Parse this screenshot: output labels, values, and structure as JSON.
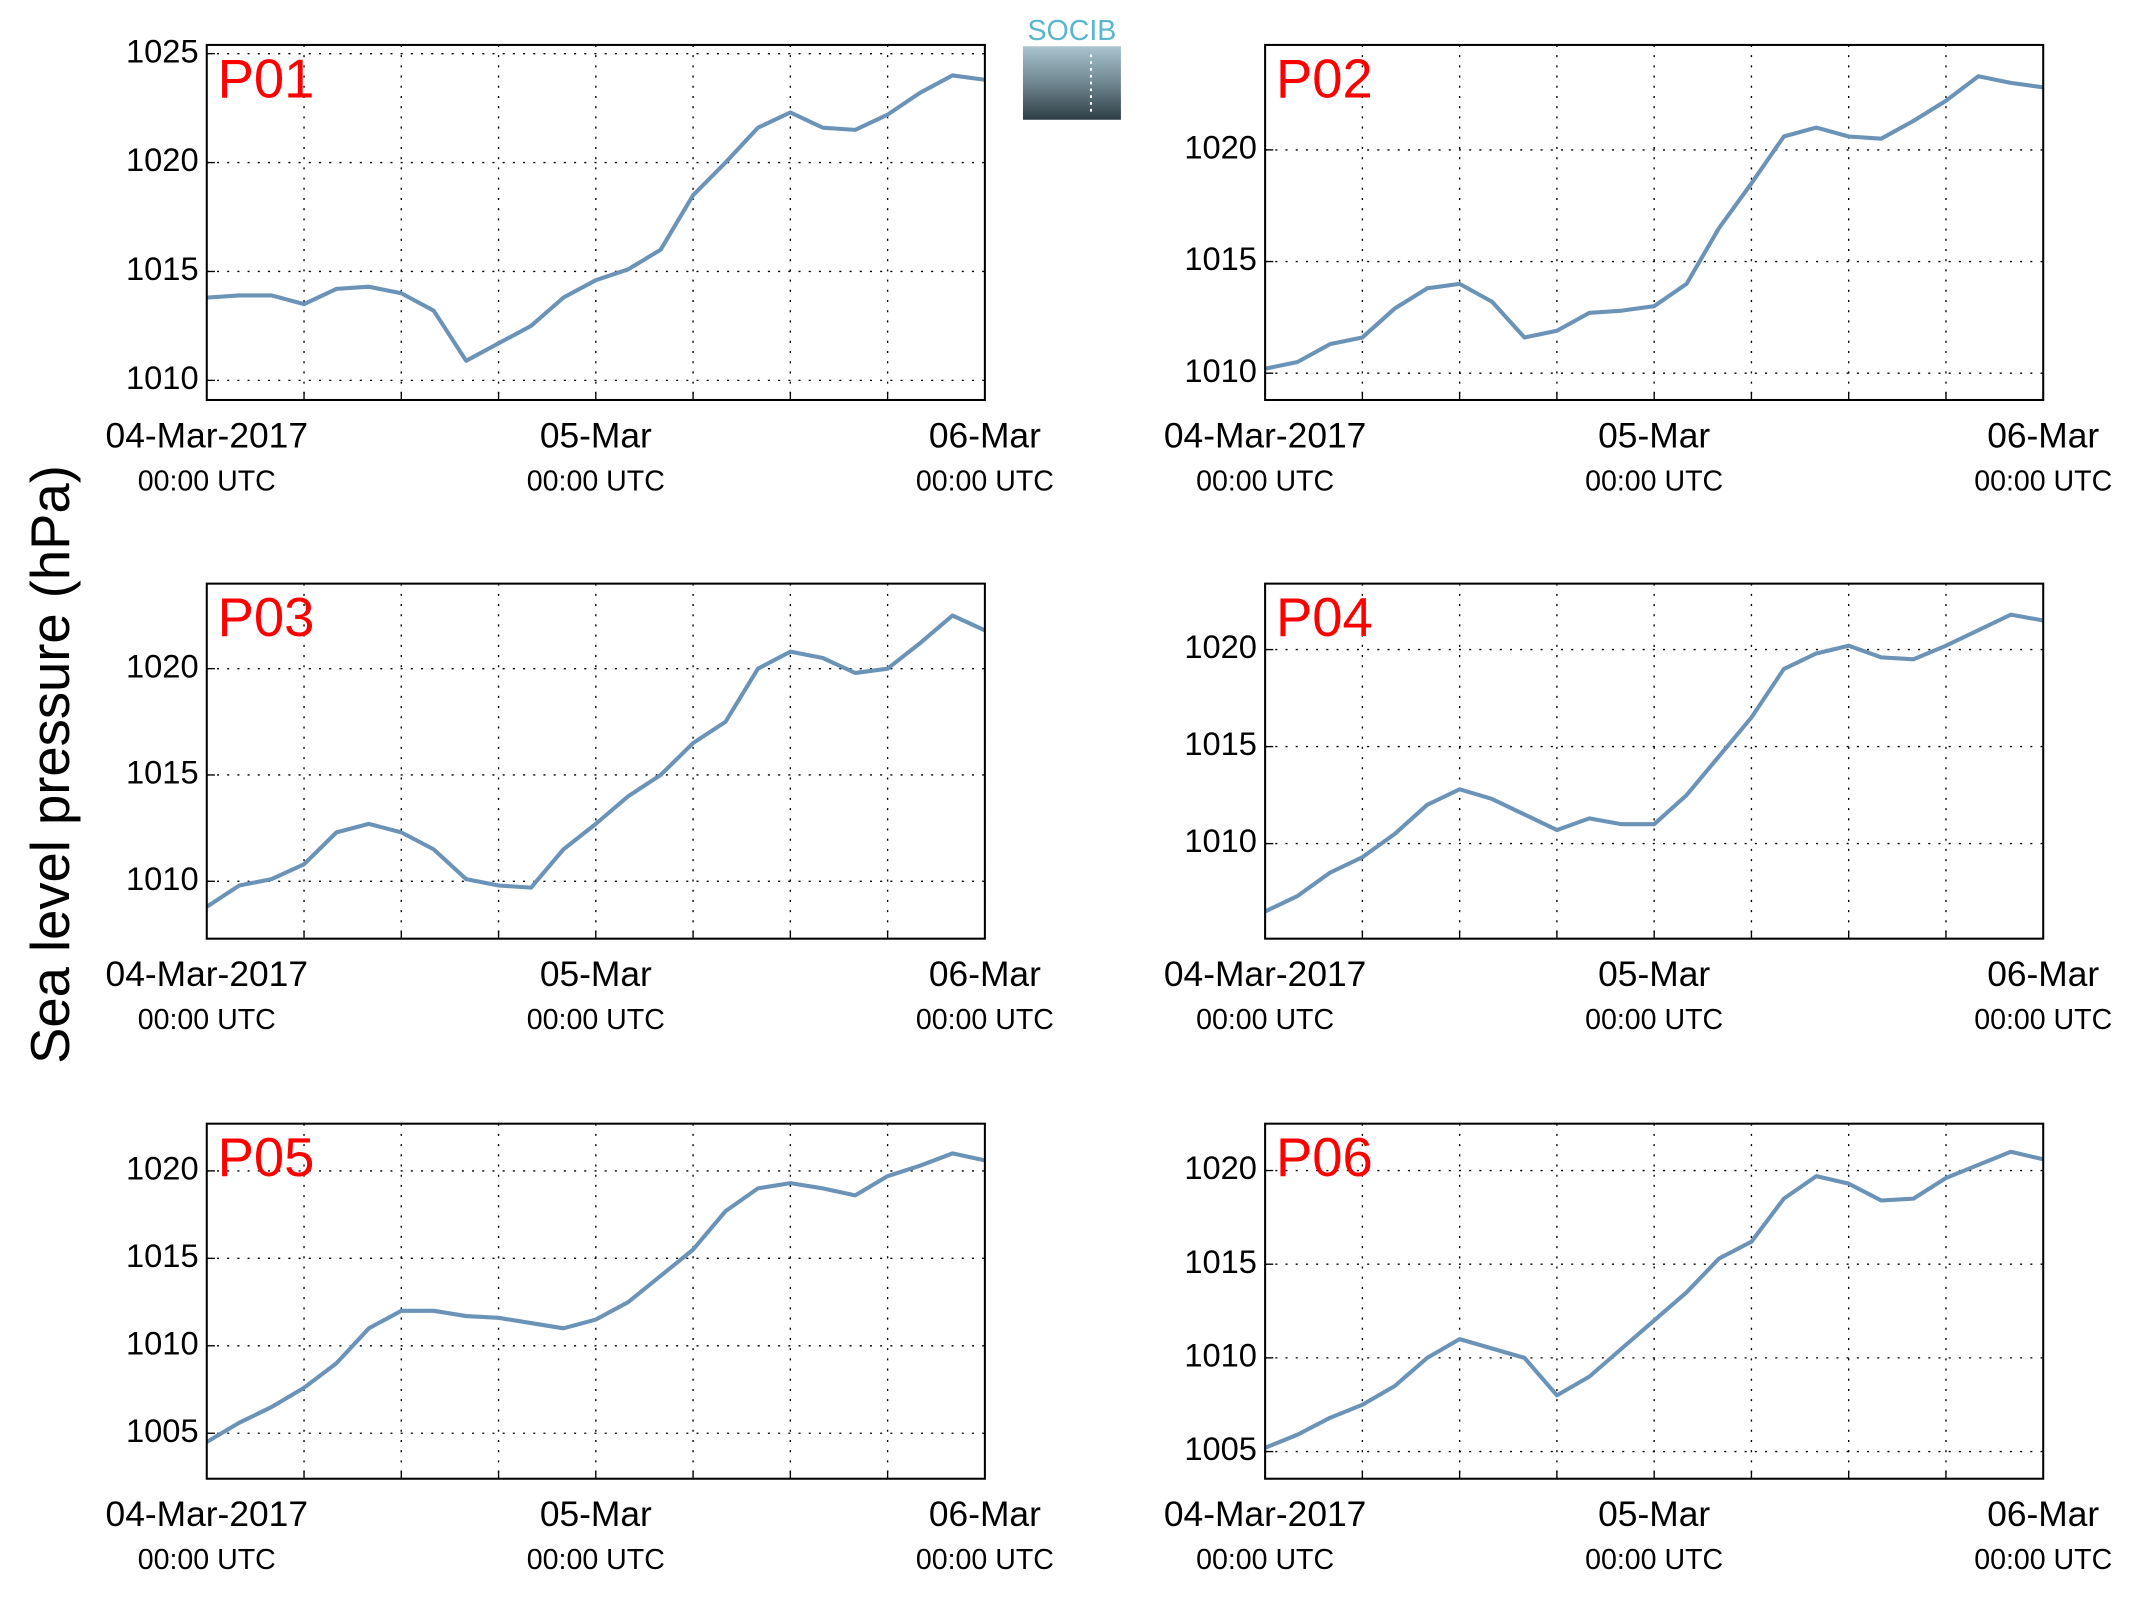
{
  "figure": {
    "ylabel": "Sea level pressure (hPa)",
    "logo": "SOCIB"
  },
  "chart_data": [
    {
      "type": "line",
      "title": "P01",
      "color": "#6b93b8",
      "grid": true,
      "x": [
        0,
        2,
        4,
        6,
        8,
        10,
        12,
        14,
        16,
        18,
        20,
        22,
        24,
        26,
        28,
        30,
        32,
        34,
        36,
        38,
        40,
        42,
        44,
        46,
        48
      ],
      "values": [
        1013.8,
        1013.9,
        1013.9,
        1013.5,
        1014.2,
        1014.3,
        1014.0,
        1013.2,
        1010.9,
        1011.7,
        1012.5,
        1013.8,
        1014.6,
        1015.1,
        1016.0,
        1018.5,
        1020.0,
        1021.6,
        1022.3,
        1021.6,
        1021.5,
        1022.2,
        1023.2,
        1024.0,
        1023.8
      ],
      "xlim": [
        0,
        48
      ],
      "ylim": [
        1009.1,
        1025.4
      ],
      "yticks": [
        1010,
        1015,
        1020,
        1025
      ],
      "xticks": [
        0,
        6,
        12,
        18,
        24,
        30,
        36,
        42,
        48
      ],
      "xticklabels": [
        {
          "value": 0,
          "label": "04-Mar-2017",
          "sublabel": "00:00 UTC"
        },
        {
          "value": 24,
          "label": "05-Mar",
          "sublabel": "00:00 UTC"
        },
        {
          "value": 48,
          "label": "06-Mar",
          "sublabel": "00:00 UTC"
        }
      ]
    },
    {
      "type": "line",
      "title": "P02",
      "color": "#6b93b8",
      "grid": true,
      "x": [
        0,
        2,
        4,
        6,
        8,
        10,
        12,
        14,
        16,
        18,
        20,
        22,
        24,
        26,
        28,
        30,
        32,
        34,
        36,
        38,
        40,
        42,
        44,
        46,
        48
      ],
      "values": [
        1010.2,
        1010.5,
        1011.3,
        1011.6,
        1012.9,
        1013.8,
        1014.0,
        1013.2,
        1011.6,
        1011.9,
        1012.7,
        1012.8,
        1013.0,
        1014.0,
        1016.5,
        1018.5,
        1020.6,
        1021.0,
        1020.6,
        1020.5,
        1021.3,
        1022.2,
        1023.3,
        1023.0,
        1022.8
      ],
      "xlim": [
        0,
        48
      ],
      "ylim": [
        1008.8,
        1024.7
      ],
      "yticks": [
        1010,
        1015,
        1020
      ],
      "xticks": [
        0,
        6,
        12,
        18,
        24,
        30,
        36,
        42,
        48
      ],
      "xticklabels": [
        {
          "value": 0,
          "label": "04-Mar-2017",
          "sublabel": "00:00 UTC"
        },
        {
          "value": 24,
          "label": "05-Mar",
          "sublabel": "00:00 UTC"
        },
        {
          "value": 48,
          "label": "06-Mar",
          "sublabel": "00:00 UTC"
        }
      ]
    },
    {
      "type": "line",
      "title": "P03",
      "color": "#6b93b8",
      "grid": true,
      "x": [
        0,
        2,
        4,
        6,
        8,
        10,
        12,
        14,
        16,
        18,
        20,
        22,
        24,
        26,
        28,
        30,
        32,
        34,
        36,
        38,
        40,
        42,
        44,
        46,
        48
      ],
      "values": [
        1008.8,
        1009.8,
        1010.1,
        1010.8,
        1012.3,
        1012.7,
        1012.3,
        1011.5,
        1010.1,
        1009.8,
        1009.7,
        1011.5,
        1012.7,
        1014.0,
        1015.0,
        1016.5,
        1017.5,
        1020.0,
        1020.8,
        1020.5,
        1019.8,
        1020.0,
        1021.2,
        1022.5,
        1021.8
      ],
      "xlim": [
        0,
        48
      ],
      "ylim": [
        1007.3,
        1024.0
      ],
      "yticks": [
        1010,
        1015,
        1020
      ],
      "xticks": [
        0,
        6,
        12,
        18,
        24,
        30,
        36,
        42,
        48
      ],
      "xticklabels": [
        {
          "value": 0,
          "label": "04-Mar-2017",
          "sublabel": "00:00 UTC"
        },
        {
          "value": 24,
          "label": "05-Mar",
          "sublabel": "00:00 UTC"
        },
        {
          "value": 48,
          "label": "06-Mar",
          "sublabel": "00:00 UTC"
        }
      ]
    },
    {
      "type": "line",
      "title": "P04",
      "color": "#6b93b8",
      "grid": true,
      "x": [
        0,
        2,
        4,
        6,
        8,
        10,
        12,
        14,
        16,
        18,
        20,
        22,
        24,
        26,
        28,
        30,
        32,
        34,
        36,
        38,
        40,
        42,
        44,
        46,
        48
      ],
      "values": [
        1006.5,
        1007.3,
        1008.5,
        1009.3,
        1010.5,
        1012.0,
        1012.8,
        1012.3,
        1011.5,
        1010.7,
        1011.3,
        1011.0,
        1011.0,
        1012.5,
        1014.5,
        1016.5,
        1019.0,
        1019.8,
        1020.2,
        1019.6,
        1019.5,
        1020.2,
        1021.0,
        1021.8,
        1021.5
      ],
      "xlim": [
        0,
        48
      ],
      "ylim": [
        1005.1,
        1023.4
      ],
      "yticks": [
        1010,
        1015,
        1020
      ],
      "xticks": [
        0,
        6,
        12,
        18,
        24,
        30,
        36,
        42,
        48
      ],
      "xticklabels": [
        {
          "value": 0,
          "label": "04-Mar-2017",
          "sublabel": "00:00 UTC"
        },
        {
          "value": 24,
          "label": "05-Mar",
          "sublabel": "00:00 UTC"
        },
        {
          "value": 48,
          "label": "06-Mar",
          "sublabel": "00:00 UTC"
        }
      ]
    },
    {
      "type": "line",
      "title": "P05",
      "color": "#6b93b8",
      "grid": true,
      "x": [
        0,
        2,
        4,
        6,
        8,
        10,
        12,
        14,
        16,
        18,
        20,
        22,
        24,
        26,
        28,
        30,
        32,
        34,
        36,
        38,
        40,
        42,
        44,
        46,
        48
      ],
      "values": [
        1004.5,
        1005.6,
        1006.5,
        1007.6,
        1009.0,
        1011.0,
        1012.0,
        1012.0,
        1011.7,
        1011.6,
        1011.3,
        1011.0,
        1011.5,
        1012.5,
        1014.0,
        1015.5,
        1017.7,
        1019.0,
        1019.3,
        1019.0,
        1018.6,
        1019.7,
        1020.3,
        1021.0,
        1020.6
      ],
      "xlim": [
        0,
        48
      ],
      "ylim": [
        1002.4,
        1022.7
      ],
      "yticks": [
        1005,
        1010,
        1015,
        1020
      ],
      "xticks": [
        0,
        6,
        12,
        18,
        24,
        30,
        36,
        42,
        48
      ],
      "xticklabels": [
        {
          "value": 0,
          "label": "04-Mar-2017",
          "sublabel": "00:00 UTC"
        },
        {
          "value": 24,
          "label": "05-Mar",
          "sublabel": "00:00 UTC"
        },
        {
          "value": 48,
          "label": "06-Mar",
          "sublabel": "00:00 UTC"
        }
      ]
    },
    {
      "type": "line",
      "title": "P06",
      "color": "#6b93b8",
      "grid": true,
      "x": [
        0,
        2,
        4,
        6,
        8,
        10,
        12,
        14,
        16,
        18,
        20,
        22,
        24,
        26,
        28,
        30,
        32,
        34,
        36,
        38,
        40,
        42,
        44,
        46,
        48
      ],
      "values": [
        1005.2,
        1005.9,
        1006.8,
        1007.5,
        1008.5,
        1010.0,
        1011.0,
        1010.5,
        1010.0,
        1008.0,
        1009.0,
        1010.5,
        1012.0,
        1013.5,
        1015.3,
        1016.2,
        1018.5,
        1019.7,
        1019.3,
        1018.4,
        1018.5,
        1019.6,
        1020.3,
        1021.0,
        1020.6
      ],
      "xlim": [
        0,
        48
      ],
      "ylim": [
        1003.55,
        1022.5
      ],
      "yticks": [
        1005,
        1010,
        1015,
        1020
      ],
      "xticks": [
        0,
        6,
        12,
        18,
        24,
        30,
        36,
        42,
        48
      ],
      "xticklabels": [
        {
          "value": 0,
          "label": "04-Mar-2017",
          "sublabel": "00:00 UTC"
        },
        {
          "value": 24,
          "label": "05-Mar",
          "sublabel": "00:00 UTC"
        },
        {
          "value": 48,
          "label": "06-Mar",
          "sublabel": "00:00 UTC"
        }
      ]
    }
  ]
}
